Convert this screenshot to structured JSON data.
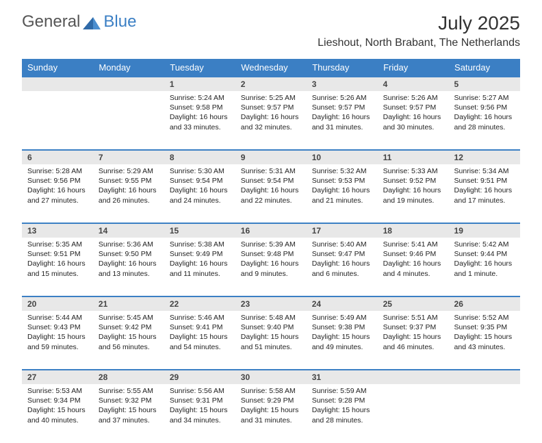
{
  "brand": {
    "part1": "General",
    "part2": "Blue"
  },
  "title": "July 2025",
  "location": "Lieshout, North Brabant, The Netherlands",
  "accent_color": "#3b7fc4",
  "grey_bg": "#e8e8e8",
  "day_headers": [
    "Sunday",
    "Monday",
    "Tuesday",
    "Wednesday",
    "Thursday",
    "Friday",
    "Saturday"
  ],
  "weeks": [
    [
      null,
      null,
      {
        "n": "1",
        "sr": "5:24 AM",
        "ss": "9:58 PM",
        "dl": "16 hours and 33 minutes."
      },
      {
        "n": "2",
        "sr": "5:25 AM",
        "ss": "9:57 PM",
        "dl": "16 hours and 32 minutes."
      },
      {
        "n": "3",
        "sr": "5:26 AM",
        "ss": "9:57 PM",
        "dl": "16 hours and 31 minutes."
      },
      {
        "n": "4",
        "sr": "5:26 AM",
        "ss": "9:57 PM",
        "dl": "16 hours and 30 minutes."
      },
      {
        "n": "5",
        "sr": "5:27 AM",
        "ss": "9:56 PM",
        "dl": "16 hours and 28 minutes."
      }
    ],
    [
      {
        "n": "6",
        "sr": "5:28 AM",
        "ss": "9:56 PM",
        "dl": "16 hours and 27 minutes."
      },
      {
        "n": "7",
        "sr": "5:29 AM",
        "ss": "9:55 PM",
        "dl": "16 hours and 26 minutes."
      },
      {
        "n": "8",
        "sr": "5:30 AM",
        "ss": "9:54 PM",
        "dl": "16 hours and 24 minutes."
      },
      {
        "n": "9",
        "sr": "5:31 AM",
        "ss": "9:54 PM",
        "dl": "16 hours and 22 minutes."
      },
      {
        "n": "10",
        "sr": "5:32 AM",
        "ss": "9:53 PM",
        "dl": "16 hours and 21 minutes."
      },
      {
        "n": "11",
        "sr": "5:33 AM",
        "ss": "9:52 PM",
        "dl": "16 hours and 19 minutes."
      },
      {
        "n": "12",
        "sr": "5:34 AM",
        "ss": "9:51 PM",
        "dl": "16 hours and 17 minutes."
      }
    ],
    [
      {
        "n": "13",
        "sr": "5:35 AM",
        "ss": "9:51 PM",
        "dl": "16 hours and 15 minutes."
      },
      {
        "n": "14",
        "sr": "5:36 AM",
        "ss": "9:50 PM",
        "dl": "16 hours and 13 minutes."
      },
      {
        "n": "15",
        "sr": "5:38 AM",
        "ss": "9:49 PM",
        "dl": "16 hours and 11 minutes."
      },
      {
        "n": "16",
        "sr": "5:39 AM",
        "ss": "9:48 PM",
        "dl": "16 hours and 9 minutes."
      },
      {
        "n": "17",
        "sr": "5:40 AM",
        "ss": "9:47 PM",
        "dl": "16 hours and 6 minutes."
      },
      {
        "n": "18",
        "sr": "5:41 AM",
        "ss": "9:46 PM",
        "dl": "16 hours and 4 minutes."
      },
      {
        "n": "19",
        "sr": "5:42 AM",
        "ss": "9:44 PM",
        "dl": "16 hours and 1 minute."
      }
    ],
    [
      {
        "n": "20",
        "sr": "5:44 AM",
        "ss": "9:43 PM",
        "dl": "15 hours and 59 minutes."
      },
      {
        "n": "21",
        "sr": "5:45 AM",
        "ss": "9:42 PM",
        "dl": "15 hours and 56 minutes."
      },
      {
        "n": "22",
        "sr": "5:46 AM",
        "ss": "9:41 PM",
        "dl": "15 hours and 54 minutes."
      },
      {
        "n": "23",
        "sr": "5:48 AM",
        "ss": "9:40 PM",
        "dl": "15 hours and 51 minutes."
      },
      {
        "n": "24",
        "sr": "5:49 AM",
        "ss": "9:38 PM",
        "dl": "15 hours and 49 minutes."
      },
      {
        "n": "25",
        "sr": "5:51 AM",
        "ss": "9:37 PM",
        "dl": "15 hours and 46 minutes."
      },
      {
        "n": "26",
        "sr": "5:52 AM",
        "ss": "9:35 PM",
        "dl": "15 hours and 43 minutes."
      }
    ],
    [
      {
        "n": "27",
        "sr": "5:53 AM",
        "ss": "9:34 PM",
        "dl": "15 hours and 40 minutes."
      },
      {
        "n": "28",
        "sr": "5:55 AM",
        "ss": "9:32 PM",
        "dl": "15 hours and 37 minutes."
      },
      {
        "n": "29",
        "sr": "5:56 AM",
        "ss": "9:31 PM",
        "dl": "15 hours and 34 minutes."
      },
      {
        "n": "30",
        "sr": "5:58 AM",
        "ss": "9:29 PM",
        "dl": "15 hours and 31 minutes."
      },
      {
        "n": "31",
        "sr": "5:59 AM",
        "ss": "9:28 PM",
        "dl": "15 hours and 28 minutes."
      },
      null,
      null
    ]
  ],
  "labels": {
    "sunrise": "Sunrise:",
    "sunset": "Sunset:",
    "daylight": "Daylight:"
  }
}
